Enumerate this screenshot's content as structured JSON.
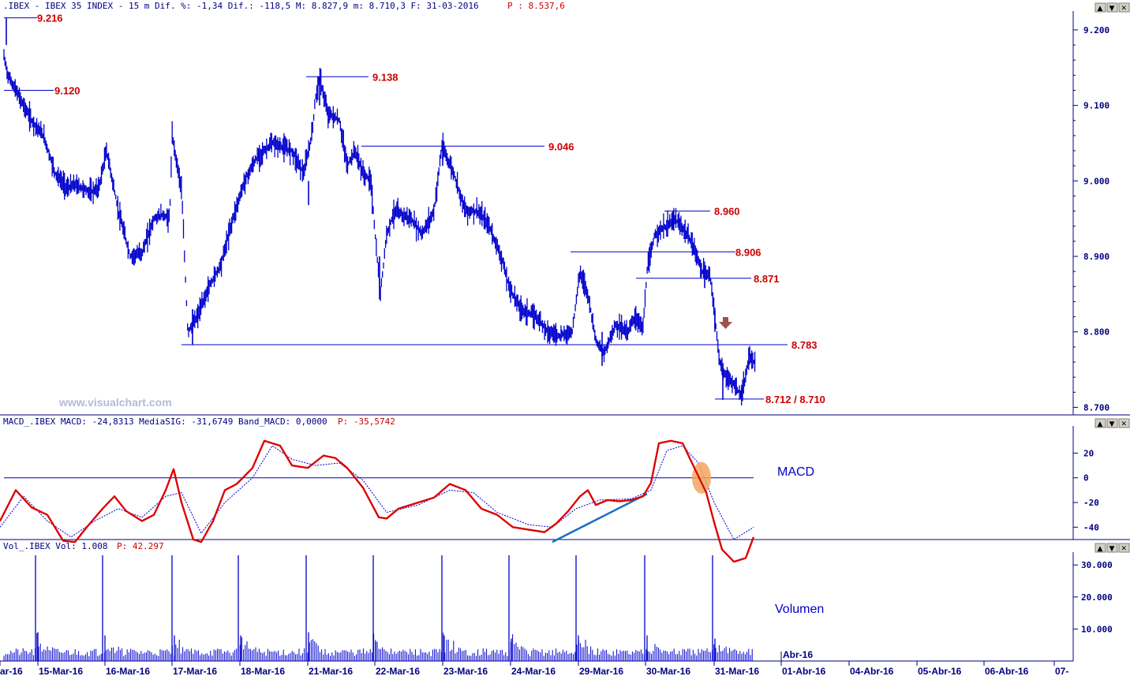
{
  "colors": {
    "price": "#0000cc",
    "levels": "#cc0000",
    "macd": "#dd0000",
    "signal": "#0000cc",
    "trendline": "#1a6fc4",
    "highlight": "#f4a460",
    "arrow": "#a0504a"
  },
  "header": {
    "main": ".IBEX - IBEX 35 INDEX -  15 m Dif. %: -1,34 Dif.: -118,5 M: 8.827,9 m: 8.710,3 F: 31-03-2016",
    "main_p": "P : 8.537,6",
    "macd": "MACD_.IBEX MACD: -24,8313 MediaSIG: -31,6749 Band_MACD: 0,0000",
    "macd_p": "P: -35,5742",
    "vol": "Vol_.IBEX Vol: 1.008",
    "vol_p": "P: 42.297"
  },
  "watermark": "www.visualchart.com",
  "labels": {
    "macd_panel": "MACD",
    "vol_panel": "Volumen",
    "apr_marker": "Abr-16"
  },
  "window_buttons": [
    "▲",
    "▼",
    "✕"
  ],
  "dates": [
    "ar-16",
    "15-Mar-16",
    "16-Mar-16",
    "17-Mar-16",
    "18-Mar-16",
    "21-Mar-16",
    "22-Mar-16",
    "23-Mar-16",
    "24-Mar-16",
    "29-Mar-16",
    "30-Mar-16",
    "31-Mar-16",
    "01-Abr-16",
    "04-Abr-16",
    "05-Abr-16",
    "06-Abr-16",
    "07-"
  ],
  "chart_data": [
    {
      "type": "line",
      "title": ".IBEX - IBEX 35 INDEX - 15 m",
      "y_ticks": [
        "9.200",
        "9.100",
        "9.000",
        "8.900",
        "8.800",
        "8.700"
      ],
      "ylim": [
        8.69,
        9.225
      ],
      "x_categories": [
        "15-Mar-16",
        "16-Mar-16",
        "17-Mar-16",
        "18-Mar-16",
        "21-Mar-16",
        "22-Mar-16",
        "23-Mar-16",
        "24-Mar-16",
        "29-Mar-16",
        "30-Mar-16",
        "31-Mar-16"
      ],
      "levels": [
        {
          "label": "9.216",
          "value": 9.216
        },
        {
          "label": "9.120",
          "value": 9.12
        },
        {
          "label": "9.138",
          "value": 9.138
        },
        {
          "label": "9.046",
          "value": 9.046
        },
        {
          "label": "8.960",
          "value": 8.96
        },
        {
          "label": "8.906",
          "value": 8.906
        },
        {
          "label": "8.871",
          "value": 8.871
        },
        {
          "label": "8.783",
          "value": 8.783
        },
        {
          "label": "8.712 / 8.710",
          "value": 8.711
        }
      ],
      "close_path": [
        [
          0,
          9.19
        ],
        [
          10,
          9.14
        ],
        [
          20,
          9.12
        ],
        [
          40,
          9.08
        ],
        [
          55,
          9.06
        ],
        [
          70,
          9.01
        ],
        [
          85,
          8.99
        ],
        [
          95,
          8.995
        ],
        [
          115,
          8.985
        ],
        [
          125,
          8.99
        ],
        [
          135,
          9.04
        ],
        [
          150,
          8.96
        ],
        [
          165,
          8.9
        ],
        [
          180,
          8.905
        ],
        [
          195,
          8.95
        ],
        [
          205,
          8.955
        ],
        [
          215,
          8.95
        ],
        [
          218,
          9.06
        ],
        [
          230,
          8.99
        ],
        [
          238,
          8.8
        ],
        [
          250,
          8.82
        ],
        [
          265,
          8.86
        ],
        [
          280,
          8.89
        ],
        [
          295,
          8.95
        ],
        [
          310,
          9.0
        ],
        [
          325,
          9.03
        ],
        [
          345,
          9.05
        ],
        [
          370,
          9.04
        ],
        [
          385,
          9.01
        ],
        [
          395,
          9.06
        ],
        [
          400,
          9.11
        ],
        [
          405,
          9.138
        ],
        [
          415,
          9.09
        ],
        [
          430,
          9.08
        ],
        [
          440,
          9.02
        ],
        [
          450,
          9.04
        ],
        [
          460,
          9.01
        ],
        [
          470,
          9.0
        ],
        [
          476,
          8.92
        ],
        [
          482,
          8.85
        ],
        [
          490,
          8.93
        ],
        [
          500,
          8.96
        ],
        [
          520,
          8.95
        ],
        [
          535,
          8.93
        ],
        [
          550,
          8.96
        ],
        [
          560,
          9.046
        ],
        [
          575,
          9.01
        ],
        [
          590,
          8.96
        ],
        [
          605,
          8.96
        ],
        [
          620,
          8.94
        ],
        [
          635,
          8.9
        ],
        [
          645,
          8.86
        ],
        [
          660,
          8.83
        ],
        [
          680,
          8.82
        ],
        [
          695,
          8.8
        ],
        [
          710,
          8.795
        ],
        [
          725,
          8.8
        ],
        [
          735,
          8.88
        ],
        [
          745,
          8.85
        ],
        [
          755,
          8.79
        ],
        [
          765,
          8.77
        ],
        [
          780,
          8.81
        ],
        [
          795,
          8.8
        ],
        [
          805,
          8.82
        ],
        [
          815,
          8.805
        ],
        [
          820,
          8.88
        ],
        [
          830,
          8.93
        ],
        [
          845,
          8.94
        ],
        [
          855,
          8.95
        ],
        [
          870,
          8.93
        ],
        [
          880,
          8.91
        ],
        [
          890,
          8.88
        ],
        [
          900,
          8.875
        ],
        [
          906,
          8.82
        ],
        [
          912,
          8.76
        ],
        [
          920,
          8.74
        ],
        [
          930,
          8.73
        ],
        [
          940,
          8.715
        ],
        [
          945,
          8.74
        ],
        [
          950,
          8.77
        ],
        [
          955,
          8.76
        ]
      ]
    },
    {
      "type": "line",
      "title": "MACD",
      "y_ticks": [
        "20",
        "0",
        "-20",
        "-40"
      ],
      "ylim": [
        -50,
        42
      ],
      "series": [
        {
          "name": "MACD",
          "values": [
            [
              0,
              -35
            ],
            [
              20,
              -10
            ],
            [
              40,
              -24
            ],
            [
              60,
              -30
            ],
            [
              80,
              -51
            ],
            [
              95,
              -52
            ],
            [
              110,
              -40
            ],
            [
              130,
              -25
            ],
            [
              145,
              -15
            ],
            [
              160,
              -27
            ],
            [
              180,
              -35
            ],
            [
              195,
              -30
            ],
            [
              210,
              -10
            ],
            [
              220,
              7
            ],
            [
              230,
              -20
            ],
            [
              245,
              -50
            ],
            [
              255,
              -52
            ],
            [
              270,
              -35
            ],
            [
              285,
              -10
            ],
            [
              300,
              -5
            ],
            [
              320,
              8
            ],
            [
              335,
              30
            ],
            [
              355,
              26
            ],
            [
              370,
              10
            ],
            [
              390,
              8
            ],
            [
              410,
              18
            ],
            [
              425,
              16
            ],
            [
              440,
              8
            ],
            [
              460,
              -8
            ],
            [
              480,
              -32
            ],
            [
              490,
              -33
            ],
            [
              505,
              -25
            ],
            [
              530,
              -20
            ],
            [
              550,
              -16
            ],
            [
              570,
              -5
            ],
            [
              590,
              -10
            ],
            [
              610,
              -25
            ],
            [
              630,
              -30
            ],
            [
              650,
              -40
            ],
            [
              670,
              -42
            ],
            [
              690,
              -44
            ],
            [
              705,
              -37
            ],
            [
              720,
              -27
            ],
            [
              735,
              -15
            ],
            [
              745,
              -10
            ],
            [
              755,
              -22
            ],
            [
              770,
              -18
            ],
            [
              785,
              -19
            ],
            [
              800,
              -18
            ],
            [
              815,
              -15
            ],
            [
              825,
              -4
            ],
            [
              835,
              28
            ],
            [
              850,
              30
            ],
            [
              865,
              28
            ],
            [
              880,
              8
            ],
            [
              895,
              -12
            ],
            [
              905,
              -36
            ],
            [
              915,
              -58
            ],
            [
              930,
              -68
            ],
            [
              945,
              -65
            ],
            [
              955,
              -48
            ]
          ]
        },
        {
          "name": "MediaSIG",
          "values": [
            [
              0,
              -40
            ],
            [
              30,
              -15
            ],
            [
              60,
              -35
            ],
            [
              90,
              -48
            ],
            [
              120,
              -35
            ],
            [
              150,
              -25
            ],
            [
              180,
              -32
            ],
            [
              210,
              -15
            ],
            [
              230,
              -12
            ],
            [
              255,
              -45
            ],
            [
              285,
              -20
            ],
            [
              320,
              0
            ],
            [
              345,
              26
            ],
            [
              370,
              15
            ],
            [
              400,
              10
            ],
            [
              430,
              12
            ],
            [
              460,
              -2
            ],
            [
              490,
              -28
            ],
            [
              530,
              -22
            ],
            [
              570,
              -10
            ],
            [
              600,
              -12
            ],
            [
              630,
              -28
            ],
            [
              670,
              -38
            ],
            [
              700,
              -40
            ],
            [
              730,
              -25
            ],
            [
              760,
              -18
            ],
            [
              800,
              -17
            ],
            [
              825,
              -10
            ],
            [
              845,
              22
            ],
            [
              865,
              26
            ],
            [
              885,
              12
            ],
            [
              905,
              -20
            ],
            [
              930,
              -50
            ],
            [
              955,
              -40
            ]
          ]
        }
      ],
      "annotations": [
        "trendline",
        "highlight-ellipse"
      ]
    },
    {
      "type": "bar",
      "title": "Volumen",
      "y_ticks": [
        "30.000",
        "20.000",
        "10.000"
      ],
      "ylim": [
        0,
        34000
      ],
      "spikes": [
        [
          45,
          33000
        ],
        [
          130,
          33000
        ],
        [
          218,
          33000
        ],
        [
          302,
          33000
        ],
        [
          388,
          33000
        ],
        [
          473,
          33000
        ],
        [
          560,
          33000
        ],
        [
          645,
          33000
        ],
        [
          730,
          33000
        ],
        [
          817,
          33000
        ],
        [
          903,
          33000
        ],
        [
          48,
          9000
        ],
        [
          133,
          8000
        ],
        [
          221,
          8000
        ],
        [
          305,
          8000
        ],
        [
          391,
          9000
        ],
        [
          476,
          6000
        ],
        [
          563,
          8000
        ],
        [
          648,
          7000
        ],
        [
          733,
          8000
        ],
        [
          820,
          8000
        ],
        [
          906,
          7000
        ]
      ]
    }
  ]
}
